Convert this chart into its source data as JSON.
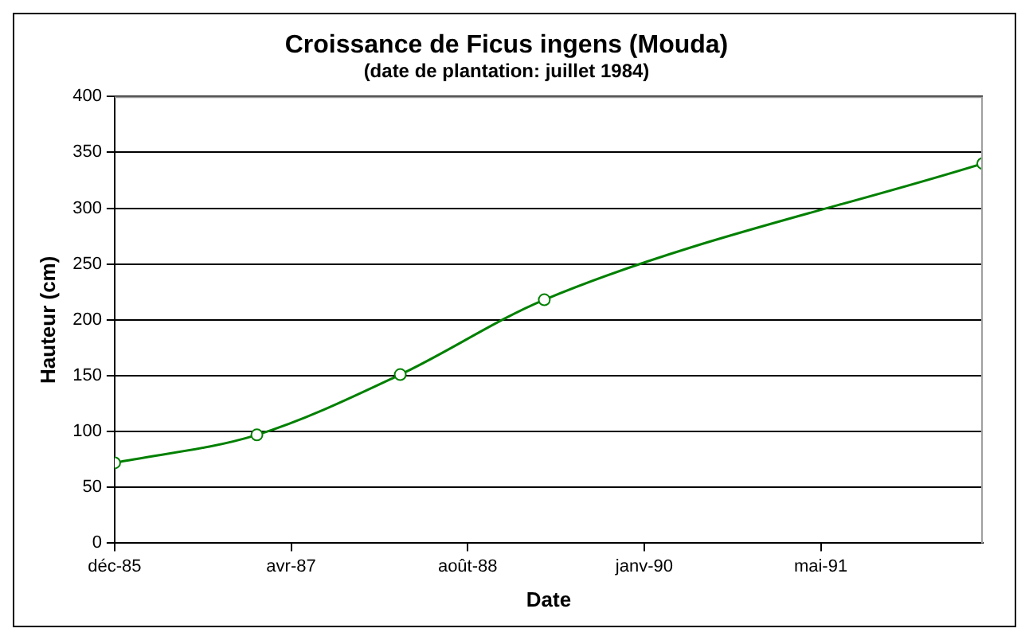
{
  "chart_data": {
    "type": "line",
    "title": "Croissance de Ficus ingens (Mouda)",
    "subtitle": "(date de plantation: juillet 1984)",
    "xlabel": "Date",
    "ylabel": "Hauteur (cm)",
    "x": [
      "1985-12-01",
      "1987-01-08",
      "1988-02-18",
      "1989-04-01",
      "1992-08-25"
    ],
    "series": [
      {
        "color": "#008000",
        "values": [
          72,
          97,
          151,
          218,
          340
        ]
      }
    ],
    "xlim": [
      "1985-12-01",
      "1992-08-25"
    ],
    "xticks": [
      {
        "value": "1985-12-01",
        "label": "déc-85"
      },
      {
        "value": "1987-04-15",
        "label": "avr-87"
      },
      {
        "value": "1988-08-27",
        "label": "août-88"
      },
      {
        "value": "1990-01-09",
        "label": "janv-90"
      },
      {
        "value": "1991-05-24",
        "label": "mai-91"
      }
    ],
    "ylim": [
      0,
      400
    ],
    "yticks": [
      0,
      50,
      100,
      150,
      200,
      250,
      300,
      350,
      400
    ],
    "grid": "y",
    "legend": false,
    "marker": "circle",
    "line_style": "solid"
  }
}
